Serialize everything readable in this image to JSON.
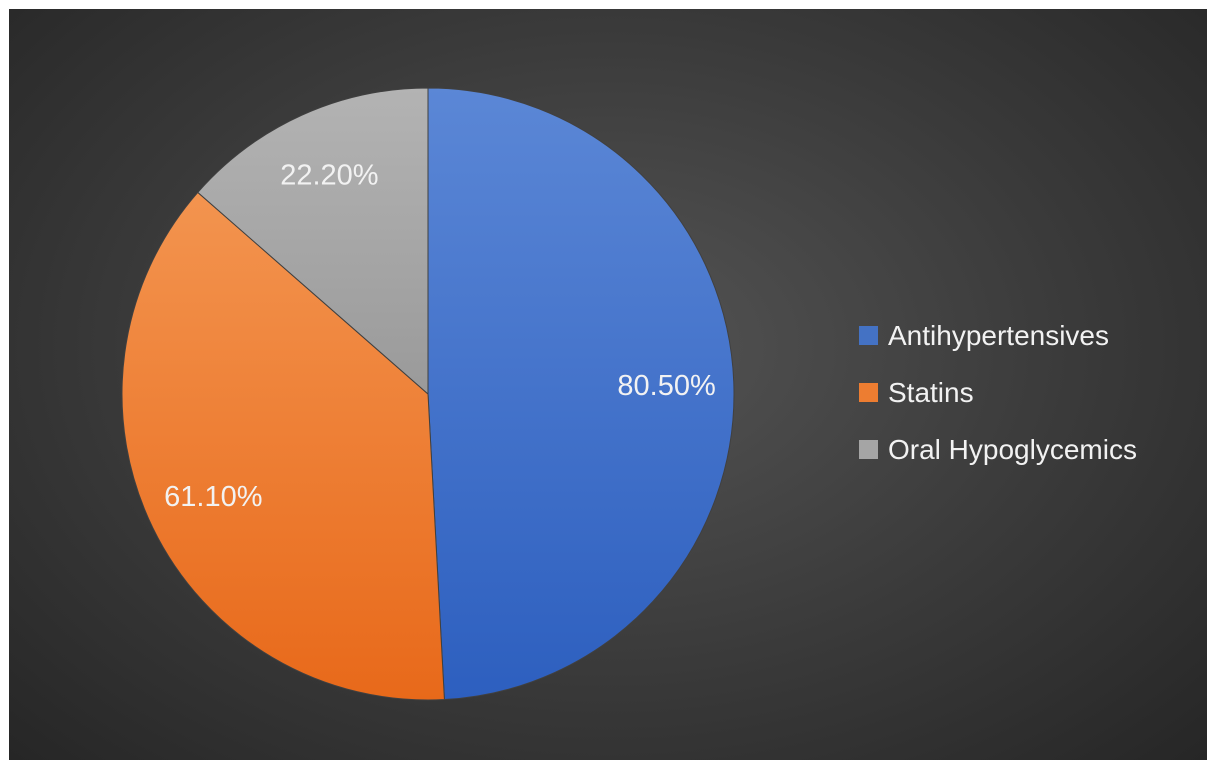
{
  "chart_data": {
    "type": "pie",
    "categories": [
      "Antihypertensives",
      "Statins",
      "Oral Hypoglycemics"
    ],
    "values": [
      80.5,
      61.1,
      22.2
    ],
    "data_labels": [
      "80.50%",
      "61.10%",
      "22.20%"
    ],
    "colors": [
      "#4472c4",
      "#ed7d31",
      "#a5a5a5"
    ],
    "title": "",
    "legend_position": "right",
    "start_angle": "top (12 o'clock), clockwise"
  }
}
